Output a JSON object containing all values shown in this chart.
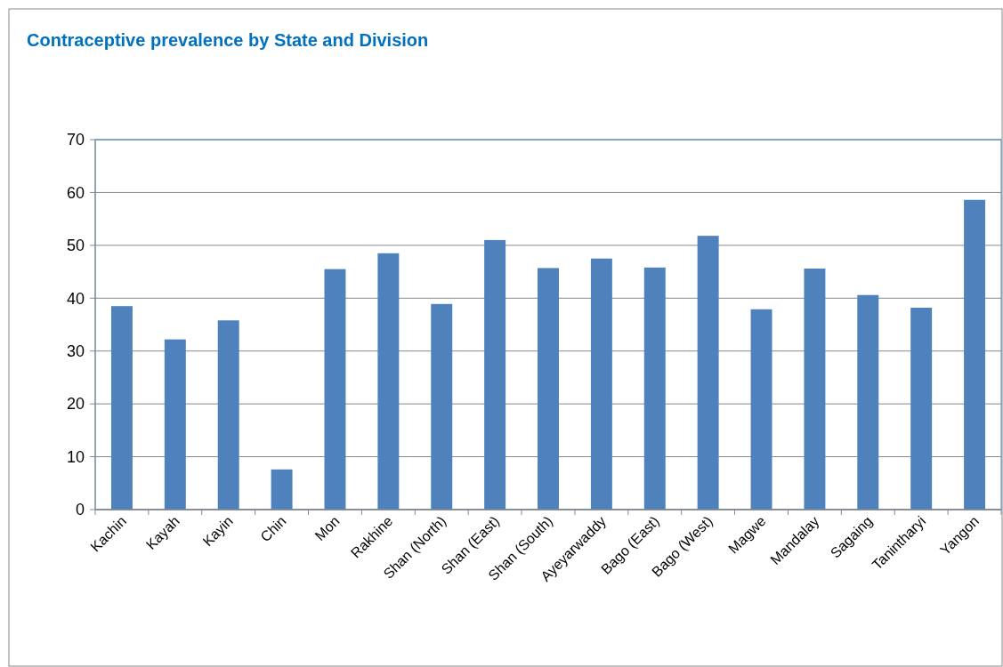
{
  "chart_data": {
    "type": "bar",
    "title": "Contraceptive prevalence by State and Division",
    "categories": [
      "Kachin",
      "Kayah",
      "Kayin",
      "Chin",
      "Mon",
      "Rakhine",
      "Shan (North)",
      "Shan (East)",
      "Shan (South)",
      "Ayeyarwaddy",
      "Bago (East)",
      "Bago (West)",
      "Magwe",
      "Mandalay",
      "Sagaing",
      "Tanintharyi",
      "Yangon"
    ],
    "values": [
      38.5,
      32.2,
      35.8,
      7.6,
      45.5,
      48.5,
      38.9,
      51.0,
      45.7,
      47.5,
      45.8,
      51.8,
      37.9,
      45.6,
      40.6,
      38.2,
      58.6
    ],
    "color": "#4f81bd",
    "ylim": [
      0,
      70
    ],
    "yticks": [
      0,
      10,
      20,
      30,
      40,
      50,
      60,
      70
    ],
    "grid": "y"
  }
}
